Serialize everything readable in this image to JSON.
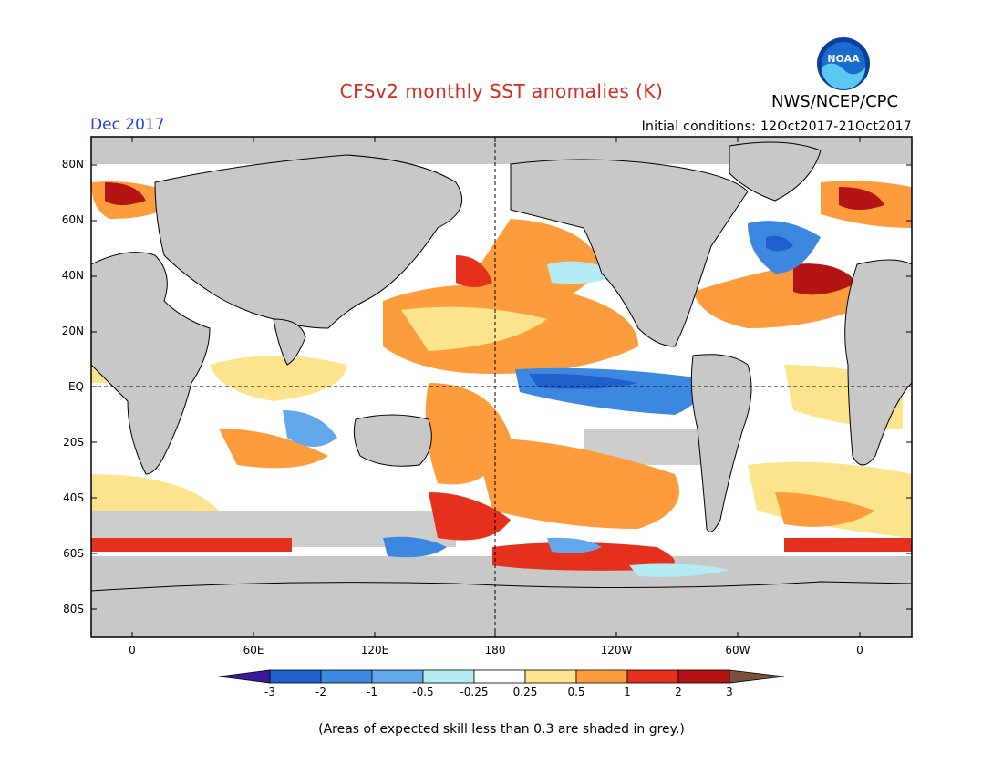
{
  "title": "CFSv2 monthly SST anomalies (K)",
  "agency": "NWS/NCEP/CPC",
  "logo_text": "NOAA",
  "valid_month": "Dec 2017",
  "initial_conditions": "Initial conditions: 12Oct2017-21Oct2017",
  "lat_labels": [
    "80N",
    "60N",
    "40N",
    "20N",
    "EQ",
    "20S",
    "40S",
    "60S",
    "80S"
  ],
  "lon_labels": [
    "0",
    "60E",
    "120E",
    "180",
    "120W",
    "60W",
    "0"
  ],
  "colorbar": {
    "labels": [
      "-3",
      "-2",
      "-1",
      "-0.5",
      "-0.25",
      "0.25",
      "0.5",
      "1",
      "2",
      "3"
    ],
    "colors": [
      "#3a1a9c",
      "#2060cc",
      "#3c88e0",
      "#64a8ec",
      "#b4ecf4",
      "#ffffff",
      "#fce48c",
      "#fc9c3c",
      "#e4301c",
      "#b41414",
      "#7c5040"
    ]
  },
  "land_color": "#c8c8c8",
  "skill_note": "(Areas of expected skill less than 0.3 are shaded in grey.)"
}
